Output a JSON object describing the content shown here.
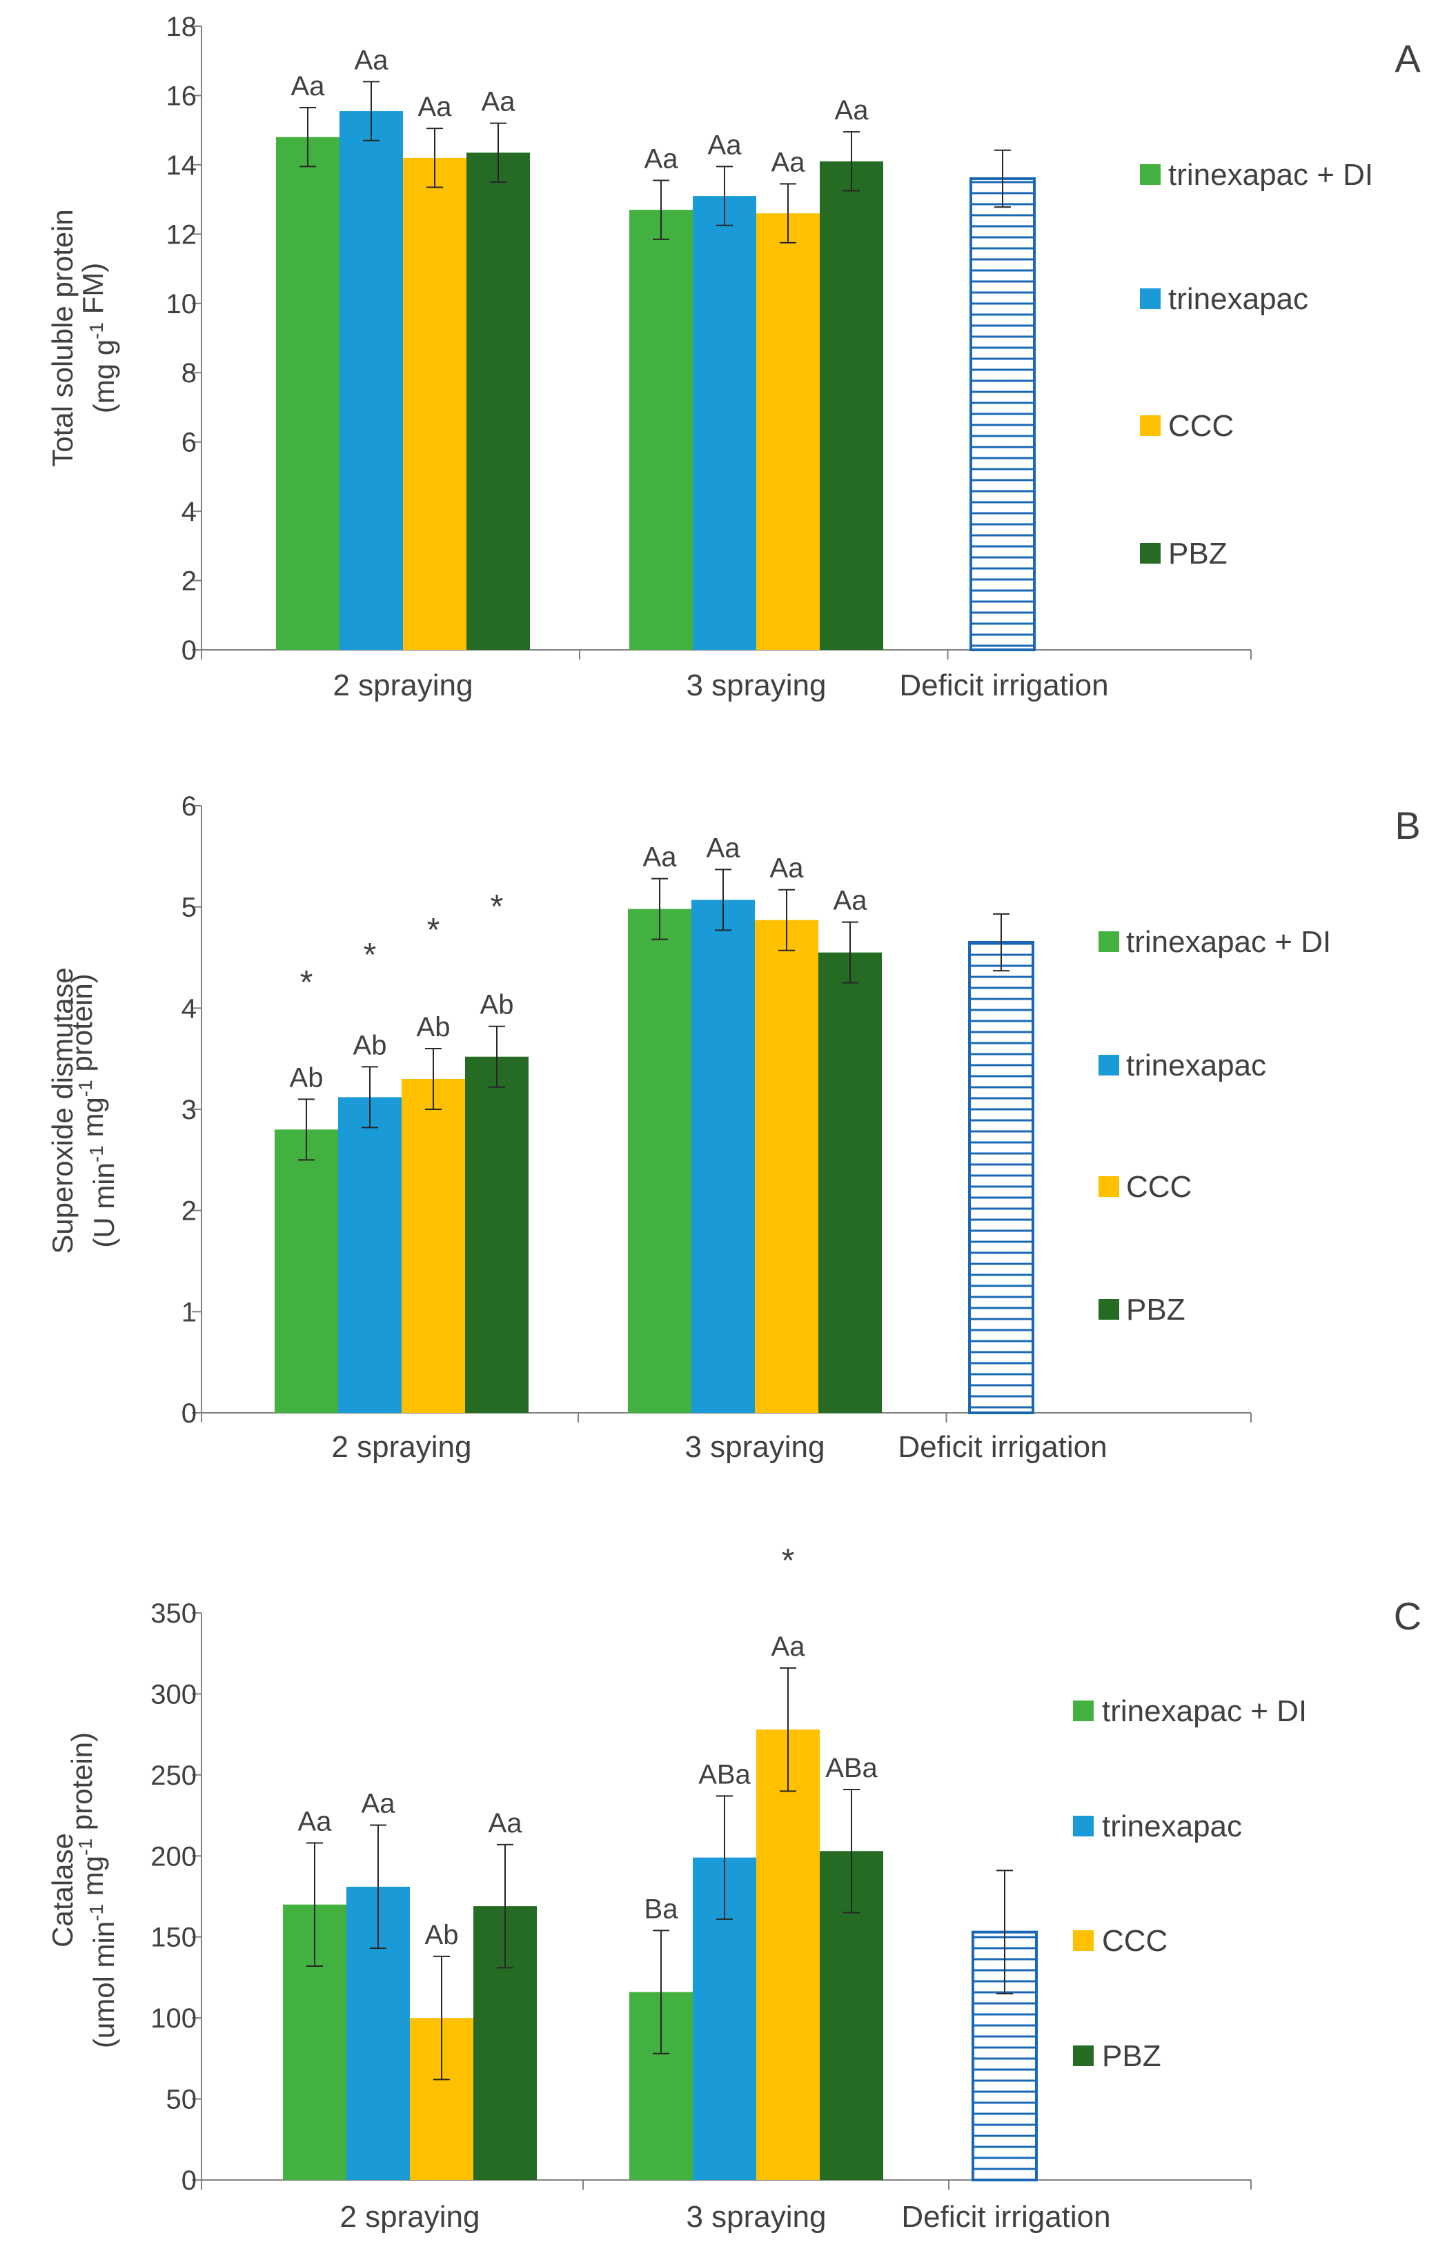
{
  "chart_data": [
    {
      "panel_letter": "A",
      "type": "bar",
      "ylabel_line1": "Total soluble protein",
      "ylabel_line2_pre": "(mg g",
      "ylabel_line2_sup": "-1",
      "ylabel_line2_post": " FM)",
      "ylim": [
        0,
        18
      ],
      "yticks": [
        0,
        2,
        4,
        6,
        8,
        10,
        12,
        14,
        16,
        18
      ],
      "categories": [
        "2 spraying",
        "3 spraying",
        "Deficit irrigation"
      ],
      "series": [
        {
          "name": "trinexapac + DI",
          "color": "#43b13f",
          "values": [
            14.8,
            12.7,
            null
          ],
          "errors": [
            0.85,
            0.85,
            null
          ],
          "labels": [
            "Aa",
            "Aa",
            null
          ],
          "stars": [
            false,
            false,
            false
          ]
        },
        {
          "name": "trinexapac",
          "color": "#1a9ad6",
          "values": [
            15.55,
            13.1,
            null
          ],
          "errors": [
            0.85,
            0.85,
            null
          ],
          "labels": [
            "Aa",
            "Aa",
            null
          ],
          "stars": [
            false,
            false,
            false
          ]
        },
        {
          "name": "CCC",
          "color": "#ffc000",
          "values": [
            14.2,
            12.6,
            null
          ],
          "errors": [
            0.85,
            0.85,
            null
          ],
          "labels": [
            "Aa",
            "Aa",
            null
          ],
          "stars": [
            false,
            false,
            false
          ]
        },
        {
          "name": "PBZ",
          "color": "#256b23",
          "values": [
            14.35,
            14.1,
            null
          ],
          "errors": [
            0.85,
            0.85,
            null
          ],
          "labels": [
            "Aa",
            "Aa",
            null
          ],
          "stars": [
            false,
            false,
            false
          ]
        }
      ],
      "deficit": {
        "value": 13.6,
        "error": 0.82,
        "color": "#1a68b5"
      }
    },
    {
      "panel_letter": "B",
      "type": "bar",
      "ylabel_line1": "Superoxide dismutase",
      "ylabel_line2_pre": "(U min",
      "ylabel_line2_sup": "-1",
      "ylabel_line2_mid": " mg",
      "ylabel_line2_sup2": "-1",
      "ylabel_line2_post": " protein)",
      "ylim": [
        0,
        6
      ],
      "yticks": [
        0,
        1,
        2,
        3,
        4,
        5,
        6
      ],
      "categories": [
        "2 spraying",
        "3 spraying",
        "Deficit irrigation"
      ],
      "series": [
        {
          "name": "trinexapac +  DI",
          "color": "#43b13f",
          "values": [
            2.8,
            4.98,
            null
          ],
          "errors": [
            0.3,
            0.3,
            null
          ],
          "labels": [
            "Ab",
            "Aa",
            null
          ],
          "stars": [
            true,
            false,
            false
          ]
        },
        {
          "name": "trinexapac",
          "color": "#1a9ad6",
          "values": [
            3.12,
            5.07,
            null
          ],
          "errors": [
            0.3,
            0.3,
            null
          ],
          "labels": [
            "Ab",
            "Aa",
            null
          ],
          "stars": [
            true,
            false,
            false
          ]
        },
        {
          "name": "CCC",
          "color": "#ffc000",
          "values": [
            3.3,
            4.87,
            null
          ],
          "errors": [
            0.3,
            0.3,
            null
          ],
          "labels": [
            "Ab",
            "Aa",
            null
          ],
          "stars": [
            true,
            false,
            false
          ]
        },
        {
          "name": "PBZ",
          "color": "#256b23",
          "values": [
            3.52,
            4.55,
            null
          ],
          "errors": [
            0.3,
            0.3,
            null
          ],
          "labels": [
            "Ab",
            "Aa",
            null
          ],
          "stars": [
            true,
            false,
            false
          ]
        }
      ],
      "deficit": {
        "value": 4.65,
        "error": 0.28,
        "color": "#1a68b5"
      }
    },
    {
      "panel_letter": "C",
      "type": "bar",
      "ylabel_line1": "Catalase",
      "ylabel_line2_pre": "(umol min",
      "ylabel_line2_sup": "-1",
      "ylabel_line2_mid": " mg",
      "ylabel_line2_sup2": "-1",
      "ylabel_line2_post": " protein)",
      "ylim": [
        0,
        350
      ],
      "yticks": [
        0,
        50,
        100,
        150,
        200,
        250,
        300,
        350
      ],
      "categories": [
        "2 spraying",
        "3 spraying",
        "Deficit irrigation"
      ],
      "series": [
        {
          "name": "trinexapac + DI",
          "color": "#43b13f",
          "values": [
            170,
            116,
            null
          ],
          "errors": [
            38,
            38,
            null
          ],
          "labels": [
            "Aa",
            "Ba",
            null
          ],
          "stars": [
            false,
            false,
            false
          ]
        },
        {
          "name": "trinexapac",
          "color": "#1a9ad6",
          "values": [
            181,
            199,
            null
          ],
          "errors": [
            38,
            38,
            null
          ],
          "labels": [
            "Aa",
            "ABa",
            null
          ],
          "stars": [
            false,
            false,
            false
          ]
        },
        {
          "name": "CCC",
          "color": "#ffc000",
          "values": [
            100,
            278,
            null
          ],
          "errors": [
            38,
            38,
            null
          ],
          "labels": [
            "Ab",
            "Aa",
            null
          ],
          "stars": [
            false,
            true,
            false
          ]
        },
        {
          "name": "PBZ",
          "color": "#256b23",
          "values": [
            169,
            203,
            null
          ],
          "errors": [
            38,
            38,
            null
          ],
          "labels": [
            "Aa",
            "ABa",
            null
          ],
          "stars": [
            false,
            false,
            false
          ]
        }
      ],
      "deficit": {
        "value": 153,
        "error": 38,
        "color": "#1a68b5"
      }
    }
  ],
  "star_symbol": "*",
  "star_color": "#ff0000"
}
